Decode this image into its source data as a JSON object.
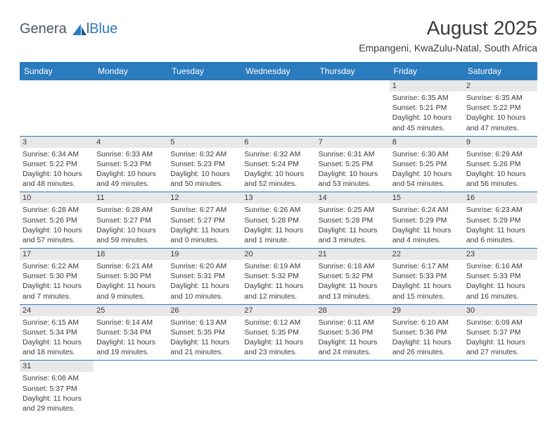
{
  "logo": {
    "general": "Genera",
    "blue": "Blue",
    "l": "l"
  },
  "header": {
    "month_title": "August 2025",
    "location": "Empangeni, KwaZulu-Natal, South Africa"
  },
  "colors": {
    "header_bg": "#2b7bbf",
    "header_text": "#ffffff",
    "daynum_bg": "#e8e8e8",
    "text": "#3a3a3a",
    "cell_border": "#2b7bbf"
  },
  "day_headers": [
    "Sunday",
    "Monday",
    "Tuesday",
    "Wednesday",
    "Thursday",
    "Friday",
    "Saturday"
  ],
  "weeks": [
    [
      {
        "empty": true
      },
      {
        "empty": true
      },
      {
        "empty": true
      },
      {
        "empty": true
      },
      {
        "empty": true
      },
      {
        "n": "1",
        "sunrise": "Sunrise: 6:35 AM",
        "sunset": "Sunset: 5:21 PM",
        "day1": "Daylight: 10 hours",
        "day2": "and 45 minutes."
      },
      {
        "n": "2",
        "sunrise": "Sunrise: 6:35 AM",
        "sunset": "Sunset: 5:22 PM",
        "day1": "Daylight: 10 hours",
        "day2": "and 47 minutes."
      }
    ],
    [
      {
        "n": "3",
        "sunrise": "Sunrise: 6:34 AM",
        "sunset": "Sunset: 5:22 PM",
        "day1": "Daylight: 10 hours",
        "day2": "and 48 minutes."
      },
      {
        "n": "4",
        "sunrise": "Sunrise: 6:33 AM",
        "sunset": "Sunset: 5:23 PM",
        "day1": "Daylight: 10 hours",
        "day2": "and 49 minutes."
      },
      {
        "n": "5",
        "sunrise": "Sunrise: 6:32 AM",
        "sunset": "Sunset: 5:23 PM",
        "day1": "Daylight: 10 hours",
        "day2": "and 50 minutes."
      },
      {
        "n": "6",
        "sunrise": "Sunrise: 6:32 AM",
        "sunset": "Sunset: 5:24 PM",
        "day1": "Daylight: 10 hours",
        "day2": "and 52 minutes."
      },
      {
        "n": "7",
        "sunrise": "Sunrise: 6:31 AM",
        "sunset": "Sunset: 5:25 PM",
        "day1": "Daylight: 10 hours",
        "day2": "and 53 minutes."
      },
      {
        "n": "8",
        "sunrise": "Sunrise: 6:30 AM",
        "sunset": "Sunset: 5:25 PM",
        "day1": "Daylight: 10 hours",
        "day2": "and 54 minutes."
      },
      {
        "n": "9",
        "sunrise": "Sunrise: 6:29 AM",
        "sunset": "Sunset: 5:26 PM",
        "day1": "Daylight: 10 hours",
        "day2": "and 56 minutes."
      }
    ],
    [
      {
        "n": "10",
        "sunrise": "Sunrise: 6:28 AM",
        "sunset": "Sunset: 5:26 PM",
        "day1": "Daylight: 10 hours",
        "day2": "and 57 minutes."
      },
      {
        "n": "11",
        "sunrise": "Sunrise: 6:28 AM",
        "sunset": "Sunset: 5:27 PM",
        "day1": "Daylight: 10 hours",
        "day2": "and 59 minutes."
      },
      {
        "n": "12",
        "sunrise": "Sunrise: 6:27 AM",
        "sunset": "Sunset: 5:27 PM",
        "day1": "Daylight: 11 hours",
        "day2": "and 0 minutes."
      },
      {
        "n": "13",
        "sunrise": "Sunrise: 6:26 AM",
        "sunset": "Sunset: 5:28 PM",
        "day1": "Daylight: 11 hours",
        "day2": "and 1 minute."
      },
      {
        "n": "14",
        "sunrise": "Sunrise: 6:25 AM",
        "sunset": "Sunset: 5:28 PM",
        "day1": "Daylight: 11 hours",
        "day2": "and 3 minutes."
      },
      {
        "n": "15",
        "sunrise": "Sunrise: 6:24 AM",
        "sunset": "Sunset: 5:29 PM",
        "day1": "Daylight: 11 hours",
        "day2": "and 4 minutes."
      },
      {
        "n": "16",
        "sunrise": "Sunrise: 6:23 AM",
        "sunset": "Sunset: 5:29 PM",
        "day1": "Daylight: 11 hours",
        "day2": "and 6 minutes."
      }
    ],
    [
      {
        "n": "17",
        "sunrise": "Sunrise: 6:22 AM",
        "sunset": "Sunset: 5:30 PM",
        "day1": "Daylight: 11 hours",
        "day2": "and 7 minutes."
      },
      {
        "n": "18",
        "sunrise": "Sunrise: 6:21 AM",
        "sunset": "Sunset: 5:30 PM",
        "day1": "Daylight: 11 hours",
        "day2": "and 9 minutes."
      },
      {
        "n": "19",
        "sunrise": "Sunrise: 6:20 AM",
        "sunset": "Sunset: 5:31 PM",
        "day1": "Daylight: 11 hours",
        "day2": "and 10 minutes."
      },
      {
        "n": "20",
        "sunrise": "Sunrise: 6:19 AM",
        "sunset": "Sunset: 5:32 PM",
        "day1": "Daylight: 11 hours",
        "day2": "and 12 minutes."
      },
      {
        "n": "21",
        "sunrise": "Sunrise: 6:18 AM",
        "sunset": "Sunset: 5:32 PM",
        "day1": "Daylight: 11 hours",
        "day2": "and 13 minutes."
      },
      {
        "n": "22",
        "sunrise": "Sunrise: 6:17 AM",
        "sunset": "Sunset: 5:33 PM",
        "day1": "Daylight: 11 hours",
        "day2": "and 15 minutes."
      },
      {
        "n": "23",
        "sunrise": "Sunrise: 6:16 AM",
        "sunset": "Sunset: 5:33 PM",
        "day1": "Daylight: 11 hours",
        "day2": "and 16 minutes."
      }
    ],
    [
      {
        "n": "24",
        "sunrise": "Sunrise: 6:15 AM",
        "sunset": "Sunset: 5:34 PM",
        "day1": "Daylight: 11 hours",
        "day2": "and 18 minutes."
      },
      {
        "n": "25",
        "sunrise": "Sunrise: 6:14 AM",
        "sunset": "Sunset: 5:34 PM",
        "day1": "Daylight: 11 hours",
        "day2": "and 19 minutes."
      },
      {
        "n": "26",
        "sunrise": "Sunrise: 6:13 AM",
        "sunset": "Sunset: 5:35 PM",
        "day1": "Daylight: 11 hours",
        "day2": "and 21 minutes."
      },
      {
        "n": "27",
        "sunrise": "Sunrise: 6:12 AM",
        "sunset": "Sunset: 5:35 PM",
        "day1": "Daylight: 11 hours",
        "day2": "and 23 minutes."
      },
      {
        "n": "28",
        "sunrise": "Sunrise: 6:11 AM",
        "sunset": "Sunset: 5:36 PM",
        "day1": "Daylight: 11 hours",
        "day2": "and 24 minutes."
      },
      {
        "n": "29",
        "sunrise": "Sunrise: 6:10 AM",
        "sunset": "Sunset: 5:36 PM",
        "day1": "Daylight: 11 hours",
        "day2": "and 26 minutes."
      },
      {
        "n": "30",
        "sunrise": "Sunrise: 6:09 AM",
        "sunset": "Sunset: 5:37 PM",
        "day1": "Daylight: 11 hours",
        "day2": "and 27 minutes."
      }
    ],
    [
      {
        "n": "31",
        "sunrise": "Sunrise: 6:08 AM",
        "sunset": "Sunset: 5:37 PM",
        "day1": "Daylight: 11 hours",
        "day2": "and 29 minutes."
      },
      {
        "empty": true
      },
      {
        "empty": true
      },
      {
        "empty": true
      },
      {
        "empty": true
      },
      {
        "empty": true
      },
      {
        "empty": true
      }
    ]
  ]
}
